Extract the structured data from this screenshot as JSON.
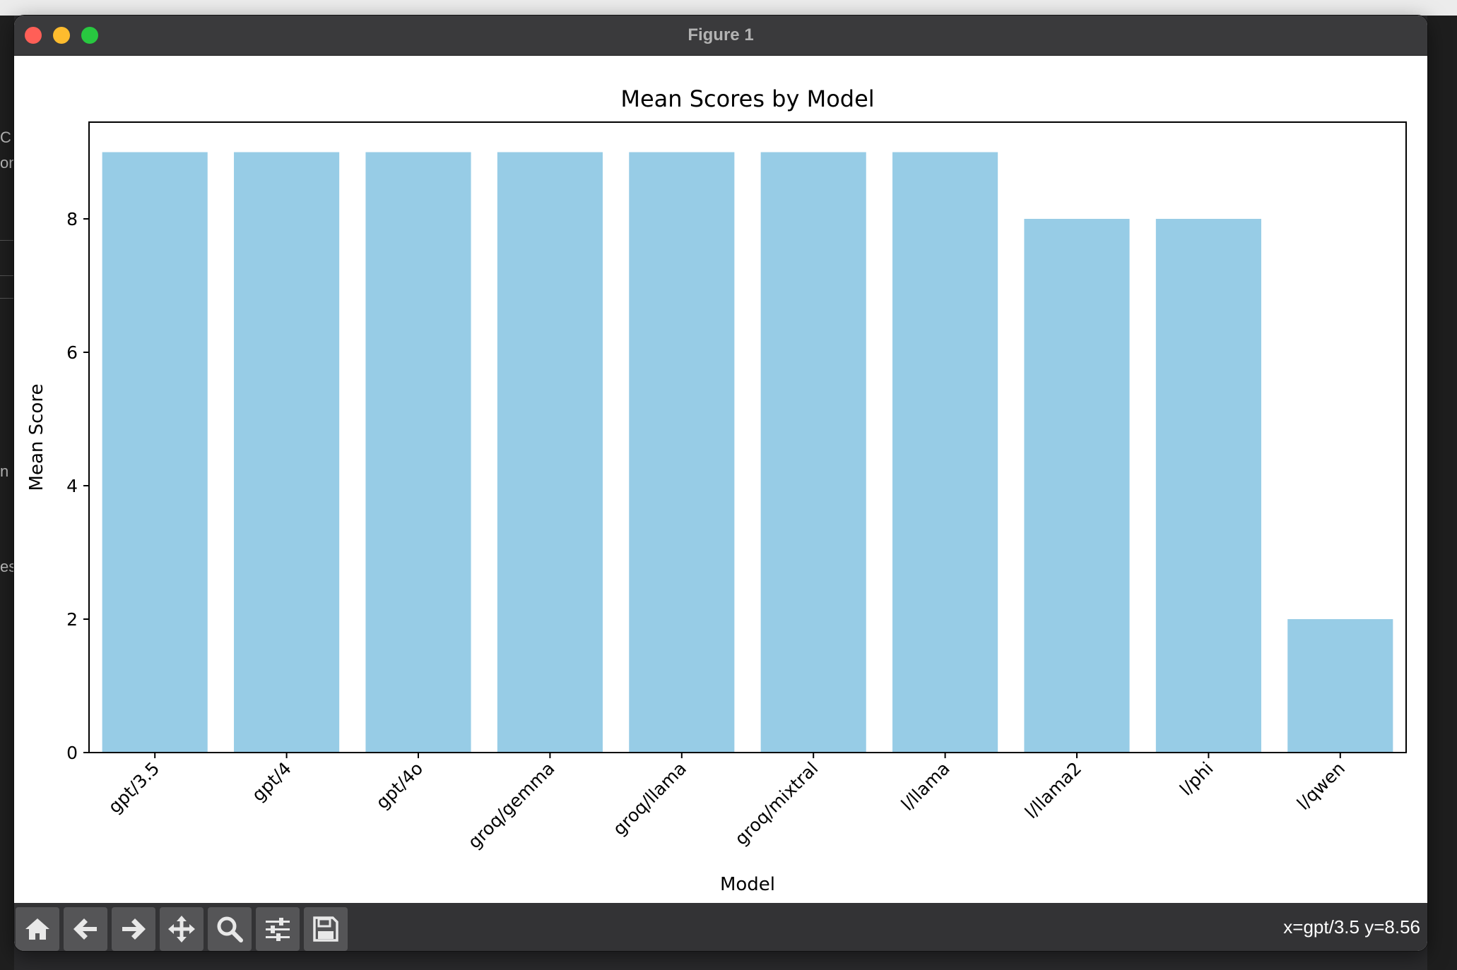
{
  "window": {
    "title": "Figure 1"
  },
  "desktop": {
    "left_fragments": [
      "C",
      "on",
      "n",
      "es"
    ]
  },
  "toolbar": {
    "buttons": [
      {
        "name": "home-button",
        "icon": "home-icon"
      },
      {
        "name": "back-button",
        "icon": "arrow-left-icon"
      },
      {
        "name": "forward-button",
        "icon": "arrow-right-icon"
      },
      {
        "name": "pan-button",
        "icon": "move-icon"
      },
      {
        "name": "zoom-button",
        "icon": "magnifier-icon"
      },
      {
        "name": "configure-subplots-button",
        "icon": "sliders-icon"
      },
      {
        "name": "save-button",
        "icon": "floppy-disk-icon"
      }
    ],
    "coords": "x=gpt/3.5 y=8.56"
  },
  "colors": {
    "bar": "#97cce6",
    "titlebar": "#3a3a3c",
    "toolbar": "#333335"
  },
  "chart_data": {
    "type": "bar",
    "title": "Mean Scores by Model",
    "xlabel": "Model",
    "ylabel": "Mean Score",
    "categories": [
      "gpt/3.5",
      "gpt/4",
      "gpt/4o",
      "groq/gemma",
      "groq/llama",
      "groq/mixtral",
      "l/llama",
      "l/llama2",
      "l/phi",
      "l/qwen"
    ],
    "values": [
      9,
      9,
      9,
      9,
      9,
      9,
      9,
      8,
      8,
      2
    ],
    "yticks": [
      "0",
      "2",
      "4",
      "6",
      "8"
    ],
    "ylim": [
      0,
      9.45
    ],
    "grid": false,
    "legend": "none"
  }
}
